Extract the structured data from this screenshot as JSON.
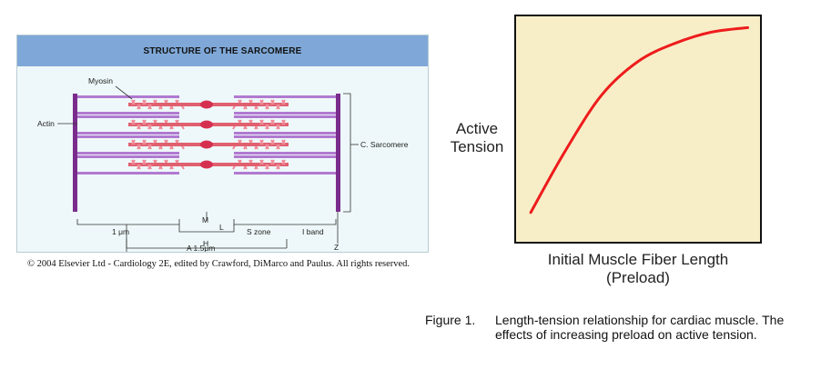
{
  "sarcomere": {
    "title": "STRUCTURE OF THE SARCOMERE",
    "labels": {
      "myosin": "Myosin",
      "actin": "Actin",
      "sarcomere": "C. Sarcomere",
      "m": "M",
      "l": "L",
      "one_um": "1 μm",
      "s_zone": "S zone",
      "i_band": "I band",
      "h": "H",
      "z": "Z",
      "a_band": "A 1.5μm"
    },
    "colors": {
      "header": "#7fa8d8",
      "myosin": "#f08a98",
      "actin": "#b07ad0",
      "z_line": "#7a2c8c"
    },
    "filament_rows": 4
  },
  "caption": "© 2004 Elsevier Ltd - Cardiology 2E, edited by Crawford, DiMarco and Paulus. All rights reserved.",
  "graph": {
    "ylabel_line1": "Active",
    "ylabel_line2": "Tension",
    "xlabel_line1": "Initial Muscle Fiber Length",
    "xlabel_line2": "(Preload)",
    "background": "#f7eec8",
    "curve_color": "#ee1c1c"
  },
  "chart_data": {
    "type": "line",
    "title": "",
    "xlabel": "Initial Muscle Fiber Length (Preload)",
    "ylabel": "Active Tension",
    "xlim": [
      0,
      1
    ],
    "ylim": [
      0,
      1
    ],
    "grid": false,
    "series": [
      {
        "x": [
          0.06,
          0.2,
          0.35,
          0.5,
          0.65,
          0.8,
          0.95
        ],
        "y": [
          0.13,
          0.4,
          0.65,
          0.8,
          0.88,
          0.93,
          0.95
        ]
      }
    ]
  },
  "figure": {
    "number": "Figure 1.",
    "text": "Length-tension relationship for cardiac muscle.  The effects of increasing preload on active tension."
  }
}
